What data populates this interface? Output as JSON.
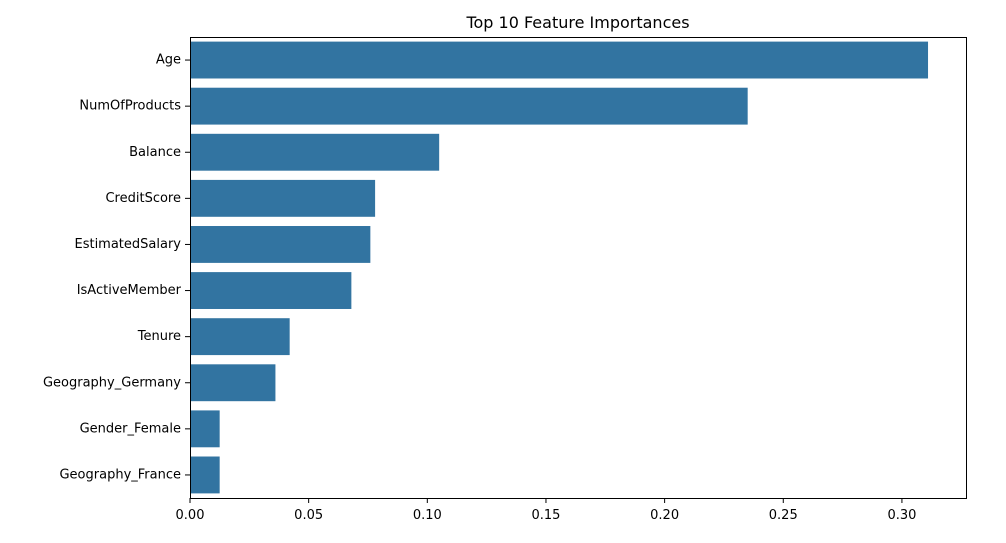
{
  "chart_data": {
    "type": "bar",
    "orientation": "horizontal",
    "title": "Top 10 Feature Importances",
    "xlabel": "",
    "ylabel": "",
    "categories": [
      "Age",
      "NumOfProducts",
      "Balance",
      "CreditScore",
      "EstimatedSalary",
      "IsActiveMember",
      "Tenure",
      "Geography_Germany",
      "Gender_Female",
      "Geography_France"
    ],
    "values": [
      0.311,
      0.235,
      0.105,
      0.078,
      0.076,
      0.068,
      0.042,
      0.036,
      0.0125,
      0.0125
    ],
    "xlim": [
      0,
      0.327
    ],
    "xticks": [
      0.0,
      0.05,
      0.1,
      0.15,
      0.2,
      0.25,
      0.3
    ],
    "xtick_labels": [
      "0.00",
      "0.05",
      "0.10",
      "0.15",
      "0.20",
      "0.25",
      "0.30"
    ],
    "bar_color": "#3274a1",
    "grid": false,
    "legend": "none"
  }
}
